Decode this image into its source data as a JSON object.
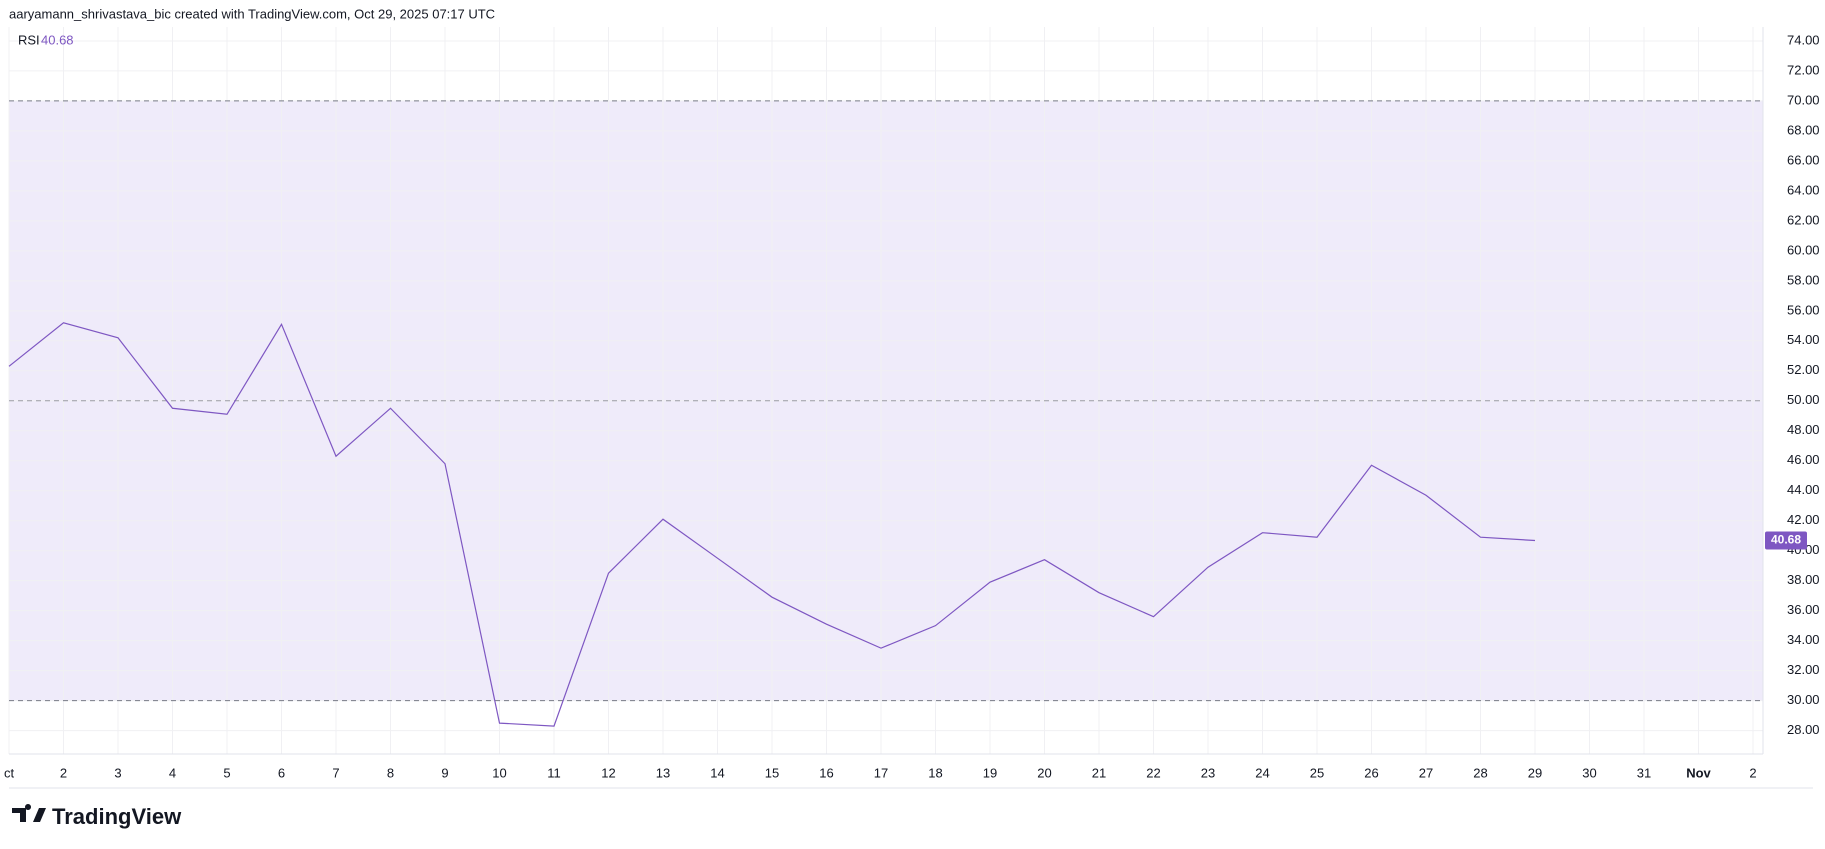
{
  "header": {
    "attribution": "aaryamann_shrivastava_bic created with TradingView.com, Oct 29, 2025 07:17 UTC"
  },
  "chart_data": {
    "type": "line",
    "categories": [
      "ct",
      "2",
      "3",
      "4",
      "5",
      "6",
      "7",
      "8",
      "9",
      "10",
      "11",
      "12",
      "13",
      "14",
      "15",
      "16",
      "17",
      "18",
      "19",
      "20",
      "21",
      "22",
      "23",
      "24",
      "25",
      "26",
      "27",
      "28",
      "29",
      "30",
      "31",
      "Nov",
      "2"
    ],
    "series": [
      {
        "name": "RSI",
        "color": "#7e57c2",
        "values": [
          52.3,
          55.2,
          54.2,
          49.5,
          49.1,
          55.1,
          46.3,
          49.5,
          45.8,
          28.5,
          28.3,
          38.5,
          42.1,
          39.5,
          36.9,
          35.1,
          33.5,
          35.0,
          37.9,
          39.4,
          37.2,
          35.6,
          38.9,
          41.2,
          40.9,
          45.7,
          43.7,
          40.9,
          40.68,
          null,
          null,
          null,
          null
        ]
      }
    ],
    "ylim": [
      26.44,
      74.93
    ],
    "yticks": [
      {
        "value": 28,
        "label": "28.00"
      },
      {
        "value": 30,
        "label": "30.00"
      },
      {
        "value": 32,
        "label": "32.00"
      },
      {
        "value": 34,
        "label": "34.00"
      },
      {
        "value": 36,
        "label": "36.00"
      },
      {
        "value": 38,
        "label": "38.00"
      },
      {
        "value": 40,
        "label": "40.00"
      },
      {
        "value": 42,
        "label": "42.00"
      },
      {
        "value": 44,
        "label": "44.00"
      },
      {
        "value": 46,
        "label": "46.00"
      },
      {
        "value": 48,
        "label": "48.00"
      },
      {
        "value": 50,
        "label": "50.00"
      },
      {
        "value": 52,
        "label": "52.00"
      },
      {
        "value": 54,
        "label": "54.00"
      },
      {
        "value": 56,
        "label": "56.00"
      },
      {
        "value": 58,
        "label": "58.00"
      },
      {
        "value": 60,
        "label": "60.00"
      },
      {
        "value": 62,
        "label": "62.00"
      },
      {
        "value": 64,
        "label": "64.00"
      },
      {
        "value": 66,
        "label": "66.00"
      },
      {
        "value": 68,
        "label": "68.00"
      },
      {
        "value": 70,
        "label": "70.00"
      },
      {
        "value": 72,
        "label": "72.00"
      },
      {
        "value": 74,
        "label": "74.00"
      }
    ],
    "band": [
      30,
      70
    ],
    "levels": [
      70,
      50,
      30
    ],
    "band_color": "#efebfa",
    "grid": true
  },
  "footer": {
    "logo": "TradingView"
  }
}
